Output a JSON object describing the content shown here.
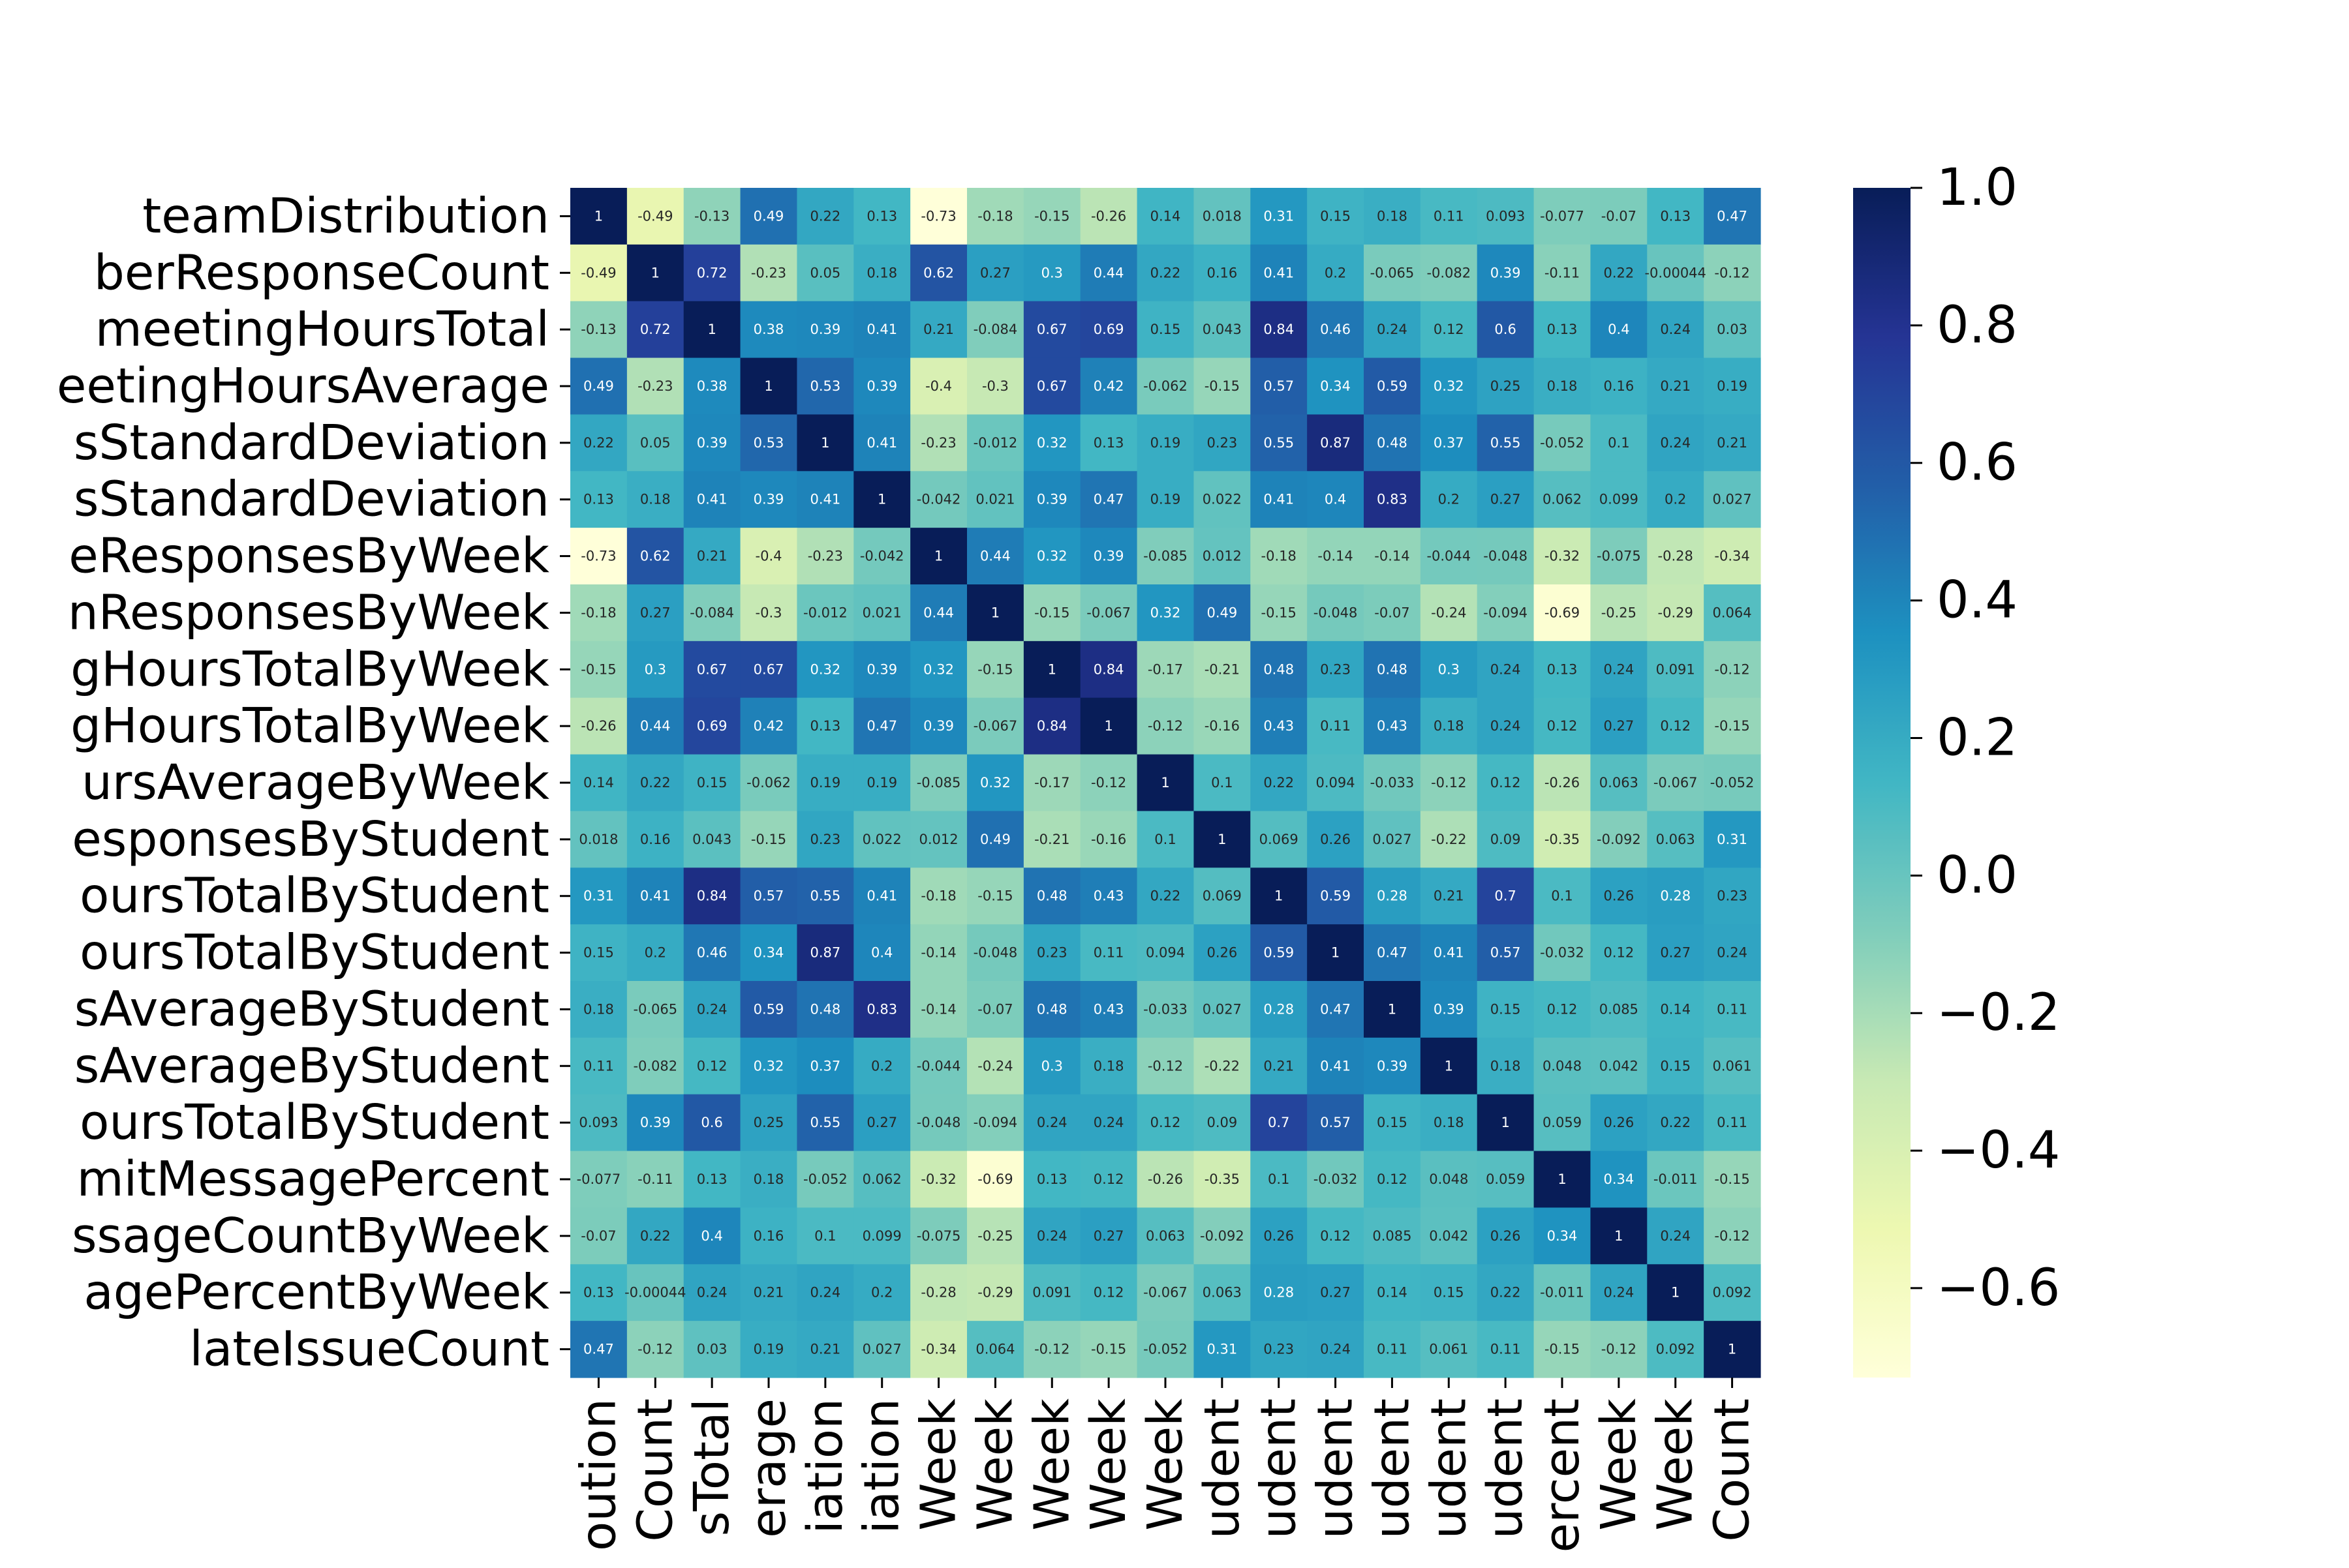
{
  "chart_data": {
    "type": "heatmap",
    "title": "",
    "xlabel": "",
    "ylabel": "",
    "colormap": "YlGnBu",
    "vmin": -0.73,
    "vmax": 1.0,
    "colorbar_ticks": [
      "1.0",
      "0.8",
      "0.6",
      "0.4",
      "0.2",
      "0.0",
      "−0.2",
      "−0.4",
      "−0.6"
    ],
    "colorbar_tick_values": [
      1.0,
      0.8,
      0.6,
      0.4,
      0.2,
      0.0,
      -0.2,
      -0.4,
      -0.6
    ],
    "row_labels": [
      "teamDistribution",
      "berResponseCount",
      "meetingHoursTotal",
      "eetingHoursAverage",
      "sStandardDeviation",
      "sStandardDeviation",
      "eResponsesByWeek",
      "nResponsesByWeek",
      "gHoursTotalByWeek",
      "gHoursTotalByWeek",
      "ursAverageByWeek",
      "esponsesByStudent",
      "oursTotalByStudent",
      "oursTotalByStudent",
      "sAverageByStudent",
      "sAverageByStudent",
      "oursTotalByStudent",
      "mitMessagePercent",
      "ssageCountByWeek",
      "agePercentByWeek",
      "lateIssueCount"
    ],
    "column_labels": [
      "oution",
      "Count",
      "sTotal",
      "erage",
      "iation",
      "iation",
      "Week",
      "Week",
      "Week",
      "Week",
      "Week",
      "udent",
      "udent",
      "udent",
      "udent",
      "udent",
      "udent",
      "ercent",
      "Week",
      "Week",
      "Count"
    ],
    "values": [
      [
        1,
        -0.49,
        -0.13,
        0.49,
        0.22,
        0.13,
        -0.73,
        -0.18,
        -0.15,
        -0.26,
        0.14,
        0.018,
        0.31,
        0.15,
        0.18,
        0.11,
        0.093,
        -0.077,
        -0.07,
        0.13,
        0.47
      ],
      [
        -0.49,
        1,
        0.72,
        -0.23,
        0.05,
        0.18,
        0.62,
        0.27,
        0.3,
        0.44,
        0.22,
        0.16,
        0.41,
        0.2,
        -0.065,
        -0.082,
        0.39,
        -0.11,
        0.22,
        -0.00044,
        -0.12
      ],
      [
        -0.13,
        0.72,
        1,
        0.38,
        0.39,
        0.41,
        0.21,
        -0.084,
        0.67,
        0.69,
        0.15,
        0.043,
        0.84,
        0.46,
        0.24,
        0.12,
        0.6,
        0.13,
        0.4,
        0.24,
        0.03
      ],
      [
        0.49,
        -0.23,
        0.38,
        1,
        0.53,
        0.39,
        -0.4,
        -0.3,
        0.67,
        0.42,
        -0.062,
        -0.15,
        0.57,
        0.34,
        0.59,
        0.32,
        0.25,
        0.18,
        0.16,
        0.21,
        0.19
      ],
      [
        0.22,
        0.05,
        0.39,
        0.53,
        1,
        0.41,
        -0.23,
        -0.012,
        0.32,
        0.13,
        0.19,
        0.23,
        0.55,
        0.87,
        0.48,
        0.37,
        0.55,
        -0.052,
        0.1,
        0.24,
        0.21
      ],
      [
        0.13,
        0.18,
        0.41,
        0.39,
        0.41,
        1,
        -0.042,
        0.021,
        0.39,
        0.47,
        0.19,
        0.022,
        0.41,
        0.4,
        0.83,
        0.2,
        0.27,
        0.062,
        0.099,
        0.2,
        0.027
      ],
      [
        -0.73,
        0.62,
        0.21,
        -0.4,
        -0.23,
        -0.042,
        1,
        0.44,
        0.32,
        0.39,
        -0.085,
        0.012,
        -0.18,
        -0.14,
        -0.14,
        -0.044,
        -0.048,
        -0.32,
        -0.075,
        -0.28,
        -0.34
      ],
      [
        -0.18,
        0.27,
        -0.084,
        -0.3,
        -0.012,
        0.021,
        0.44,
        1,
        -0.15,
        -0.067,
        0.32,
        0.49,
        -0.15,
        -0.048,
        -0.07,
        -0.24,
        -0.094,
        -0.69,
        -0.25,
        -0.29,
        0.064
      ],
      [
        -0.15,
        0.3,
        0.67,
        0.67,
        0.32,
        0.39,
        0.32,
        -0.15,
        1,
        0.84,
        -0.17,
        -0.21,
        0.48,
        0.23,
        0.48,
        0.3,
        0.24,
        0.13,
        0.24,
        0.091,
        -0.12
      ],
      [
        -0.26,
        0.44,
        0.69,
        0.42,
        0.13,
        0.47,
        0.39,
        -0.067,
        0.84,
        1,
        -0.12,
        -0.16,
        0.43,
        0.11,
        0.43,
        0.18,
        0.24,
        0.12,
        0.27,
        0.12,
        -0.15
      ],
      [
        0.14,
        0.22,
        0.15,
        -0.062,
        0.19,
        0.19,
        -0.085,
        0.32,
        -0.17,
        -0.12,
        1,
        0.1,
        0.22,
        0.094,
        -0.033,
        -0.12,
        0.12,
        -0.26,
        0.063,
        -0.067,
        -0.052
      ],
      [
        0.018,
        0.16,
        0.043,
        -0.15,
        0.23,
        0.022,
        0.012,
        0.49,
        -0.21,
        -0.16,
        0.1,
        1,
        0.069,
        0.26,
        0.027,
        -0.22,
        0.09,
        -0.35,
        -0.092,
        0.063,
        0.31
      ],
      [
        0.31,
        0.41,
        0.84,
        0.57,
        0.55,
        0.41,
        -0.18,
        -0.15,
        0.48,
        0.43,
        0.22,
        0.069,
        1,
        0.59,
        0.28,
        0.21,
        0.7,
        0.1,
        0.26,
        0.28,
        0.23
      ],
      [
        0.15,
        0.2,
        0.46,
        0.34,
        0.87,
        0.4,
        -0.14,
        -0.048,
        0.23,
        0.11,
        0.094,
        0.26,
        0.59,
        1,
        0.47,
        0.41,
        0.57,
        -0.032,
        0.12,
        0.27,
        0.24
      ],
      [
        0.18,
        -0.065,
        0.24,
        0.59,
        0.48,
        0.83,
        -0.14,
        -0.07,
        0.48,
        0.43,
        -0.033,
        0.027,
        0.28,
        0.47,
        1,
        0.39,
        0.15,
        0.12,
        0.085,
        0.14,
        0.11
      ],
      [
        0.11,
        -0.082,
        0.12,
        0.32,
        0.37,
        0.2,
        -0.044,
        -0.24,
        0.3,
        0.18,
        -0.12,
        -0.22,
        0.21,
        0.41,
        0.39,
        1,
        0.18,
        0.048,
        0.042,
        0.15,
        0.061
      ],
      [
        0.093,
        0.39,
        0.6,
        0.25,
        0.55,
        0.27,
        -0.048,
        -0.094,
        0.24,
        0.24,
        0.12,
        0.09,
        0.7,
        0.57,
        0.15,
        0.18,
        1,
        0.059,
        0.26,
        0.22,
        0.11
      ],
      [
        -0.077,
        -0.11,
        0.13,
        0.18,
        -0.052,
        0.062,
        -0.32,
        -0.69,
        0.13,
        0.12,
        -0.26,
        -0.35,
        0.1,
        -0.032,
        0.12,
        0.048,
        0.059,
        1,
        0.34,
        -0.011,
        -0.15
      ],
      [
        -0.07,
        0.22,
        0.4,
        0.16,
        0.1,
        0.099,
        -0.075,
        -0.25,
        0.24,
        0.27,
        0.063,
        -0.092,
        0.26,
        0.12,
        0.085,
        0.042,
        0.26,
        0.34,
        1,
        0.24,
        -0.12
      ],
      [
        0.13,
        -0.00044,
        0.24,
        0.21,
        0.24,
        0.2,
        -0.28,
        -0.29,
        0.091,
        0.12,
        -0.067,
        0.063,
        0.28,
        0.27,
        0.14,
        0.15,
        0.22,
        -0.011,
        0.24,
        1,
        0.092
      ],
      [
        0.47,
        -0.12,
        0.03,
        0.19,
        0.21,
        0.027,
        -0.34,
        0.064,
        -0.12,
        -0.15,
        -0.052,
        0.31,
        0.23,
        0.24,
        0.11,
        0.061,
        0.11,
        -0.15,
        -0.12,
        0.092,
        1
      ]
    ]
  }
}
